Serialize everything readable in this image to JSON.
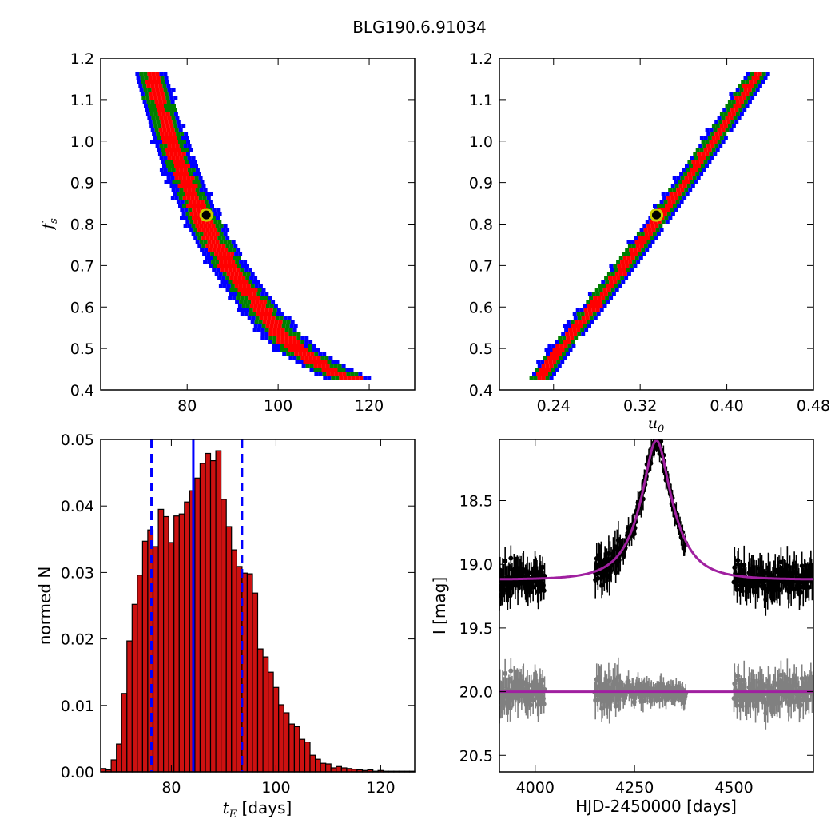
{
  "figure": {
    "title": "BLG190.6.91034"
  },
  "colors": {
    "sigma3": "#0000ff",
    "sigma2": "#008000",
    "sigma1": "#ff0000",
    "best_marker_face": "#000000",
    "best_marker_edge": "#cccc00",
    "hist_fill": "#cc1111",
    "median_line": "#0000ff",
    "model_line": "#a020a0",
    "data_points": "#000000",
    "residual_points": "#808080"
  },
  "chart_data": [
    {
      "id": "fs_vs_tE",
      "type": "heatmap",
      "title": "",
      "xlabel": "",
      "ylabel": "f_s",
      "xlim": [
        61,
        130
      ],
      "ylim": [
        0.4,
        1.2
      ],
      "xticks": [
        80,
        100,
        120
      ],
      "yticks": [
        0.4,
        0.5,
        0.6,
        0.7,
        0.8,
        0.9,
        1.0,
        1.1,
        1.2
      ],
      "ridge": {
        "fs": [
          0.43,
          0.46,
          0.5,
          0.55,
          0.6,
          0.65,
          0.7,
          0.75,
          0.8,
          0.85,
          0.9,
          0.95,
          1.0,
          1.05,
          1.1,
          1.15,
          1.17
        ],
        "tE": [
          116,
          110,
          104,
          99.5,
          95.8,
          92.2,
          89,
          86.2,
          83.8,
          81.6,
          79.6,
          77.8,
          76.2,
          74.8,
          73.4,
          72.1,
          71.6
        ]
      },
      "best_fit": {
        "tE": 84.2,
        "fs": 0.822
      },
      "levels": [
        "1-sigma",
        "2-sigma",
        "3-sigma"
      ]
    },
    {
      "id": "fs_vs_u0",
      "type": "heatmap",
      "title": "",
      "xlabel": "u_0",
      "ylabel": "",
      "xlim": [
        0.19,
        0.48
      ],
      "ylim": [
        0.4,
        1.2
      ],
      "xticks": [
        0.24,
        0.32,
        0.4,
        0.48
      ],
      "xticklabels": [
        "0.24",
        "0.32",
        "0.40",
        "0.48"
      ],
      "yticks": [
        0.4,
        0.5,
        0.6,
        0.7,
        0.8,
        0.9,
        1.0,
        1.1,
        1.2
      ],
      "ridge": {
        "fs": [
          0.43,
          0.5,
          0.6,
          0.7,
          0.8,
          0.9,
          1.0,
          1.1,
          1.17
        ],
        "u0": [
          0.225,
          0.2432,
          0.2732,
          0.3023,
          0.3305,
          0.3577,
          0.384,
          0.4095,
          0.427
        ]
      },
      "best_fit": {
        "u0": 0.335,
        "fs": 0.822
      },
      "levels": [
        "1-sigma",
        "2-sigma",
        "3-sigma"
      ]
    },
    {
      "id": "tE_histogram",
      "type": "bar",
      "title": "",
      "xlabel": "t_E [days]",
      "ylabel": "normed N",
      "xlim": [
        66.5,
        126.5
      ],
      "ylim": [
        0,
        0.05
      ],
      "xticks": [
        80,
        100,
        120
      ],
      "yticks": [
        0.0,
        0.01,
        0.02,
        0.03,
        0.04,
        0.05
      ],
      "yticklabels": [
        "0.00",
        "0.01",
        "0.02",
        "0.03",
        "0.04",
        "0.05"
      ],
      "bin_start": 66.5,
      "bin_width": 1,
      "values": [
        0.0005,
        0.0003,
        0.0018,
        0.0042,
        0.0118,
        0.0197,
        0.0252,
        0.0296,
        0.0347,
        0.0364,
        0.0339,
        0.0395,
        0.0384,
        0.0345,
        0.0385,
        0.0388,
        0.0406,
        0.0423,
        0.0442,
        0.0464,
        0.0479,
        0.0468,
        0.0483,
        0.041,
        0.0369,
        0.0334,
        0.0309,
        0.0299,
        0.0298,
        0.0269,
        0.0185,
        0.0173,
        0.015,
        0.0127,
        0.0101,
        0.0089,
        0.0072,
        0.0068,
        0.0049,
        0.0045,
        0.0025,
        0.0019,
        0.0013,
        0.0012,
        0.0006,
        0.0008,
        0.0006,
        0.0005,
        0.0004,
        0.0003,
        0.0002,
        0.0003,
        0.0001,
        0.0002,
        0.0001,
        0.0001,
        0.0001,
        0.0001,
        0.0001,
        0.0001
      ],
      "median": 84.2,
      "interval": [
        76.2,
        93.5
      ]
    },
    {
      "id": "light_curve",
      "type": "scatter",
      "title": "",
      "xlabel": "HJD-2450000 [days]",
      "ylabel": "I [mag]",
      "xlim": [
        3910,
        4700
      ],
      "ylim": [
        20.63,
        18.02
      ],
      "y_inverted": true,
      "xticks": [
        4000,
        4250,
        4500
      ],
      "yticks": [
        18.5,
        19.0,
        19.5,
        20.0,
        20.5
      ],
      "yticklabels": [
        "18.5",
        "19.0",
        "19.5",
        "20.0",
        "20.5"
      ],
      "model": {
        "t0": 4305,
        "tE": 84.2,
        "u0": 0.335,
        "baseline": 19.12,
        "fs": 0.822
      },
      "residual_offset": 20.0,
      "observing_seasons": [
        [
          3910,
          4025
        ],
        [
          4150,
          4380
        ],
        [
          4500,
          4700
        ]
      ]
    }
  ]
}
